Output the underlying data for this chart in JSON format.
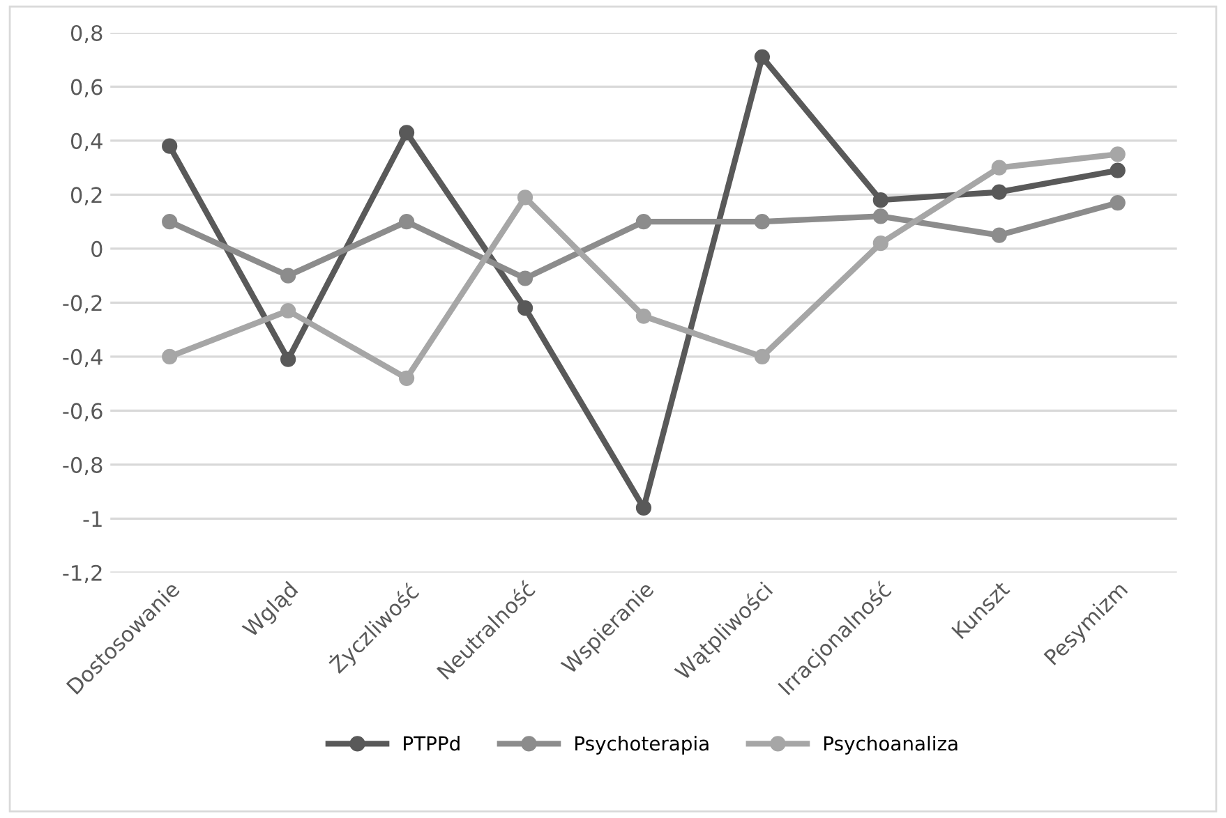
{
  "chart_data": {
    "type": "line",
    "categories": [
      "Dostosowanie",
      "Wgląd",
      "Życzliwość",
      "Neutralność",
      "Wspieranie",
      "Wątpliwości",
      "Irracjonalność",
      "Kunszt",
      "Pesymizm"
    ],
    "series": [
      {
        "name": "PTPPd",
        "color": "#595959",
        "values": [
          0.38,
          -0.41,
          0.43,
          -0.22,
          -0.96,
          0.71,
          0.18,
          0.21,
          0.29
        ]
      },
      {
        "name": "Psychoterapia",
        "color": "#8c8c8c",
        "values": [
          0.1,
          -0.1,
          0.1,
          -0.11,
          0.1,
          0.1,
          0.12,
          0.05,
          0.17
        ]
      },
      {
        "name": "Psychoanaliza",
        "color": "#a6a6a6",
        "values": [
          -0.4,
          -0.23,
          -0.48,
          0.19,
          -0.25,
          -0.4,
          0.02,
          0.3,
          0.35
        ]
      }
    ],
    "ylim": [
      -1.2,
      0.8
    ],
    "yticks": [
      {
        "value": -1.2,
        "label": "-1,2"
      },
      {
        "value": -1,
        "label": "-1"
      },
      {
        "value": -0.8,
        "label": "-0,8"
      },
      {
        "value": -0.6,
        "label": "-0,6"
      },
      {
        "value": -0.4,
        "label": "-0,4"
      },
      {
        "value": -0.2,
        "label": "-0,2"
      },
      0,
      {
        "value": 0.2,
        "label": "0,2"
      },
      {
        "value": 0.4,
        "label": "0,4"
      },
      {
        "value": 0.6,
        "label": "0,6"
      },
      {
        "value": 0.8,
        "label": "0,8"
      }
    ],
    "grid": "y",
    "legend": "bottom",
    "marker": "circle",
    "line_style": "solid"
  }
}
